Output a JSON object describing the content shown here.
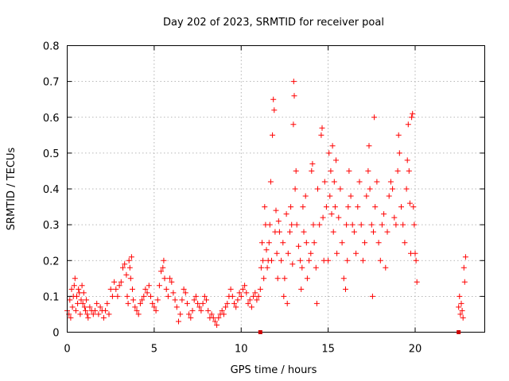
{
  "chart_data": {
    "type": "scatter",
    "title": "Day 202 of 2023, SRMTID for receiver poal",
    "xlabel": "GPS time / hours",
    "ylabel": "SRMTID / TECUs",
    "xlim": [
      0,
      24
    ],
    "ylim": [
      0,
      0.8
    ],
    "x_ticks": [
      0,
      5,
      10,
      15,
      20
    ],
    "x_tick_labels": [
      "0",
      "5",
      "10",
      "15",
      "20"
    ],
    "y_ticks": [
      0,
      0.1,
      0.2,
      0.3,
      0.4,
      0.5,
      0.6,
      0.7,
      0.8
    ],
    "y_tick_labels": [
      "0",
      "0.1",
      "0.2",
      "0.3",
      "0.4",
      "0.5",
      "0.6",
      "0.7",
      "0.8"
    ],
    "grid": true,
    "marker": "+",
    "color": "#ff0000",
    "gap_marker_color": "#cc0000",
    "gap_markers_x": [
      11.1,
      22.5
    ],
    "points": [
      [
        0.0,
        0.06
      ],
      [
        0.1,
        0.05
      ],
      [
        0.15,
        0.09
      ],
      [
        0.2,
        0.04
      ],
      [
        0.25,
        0.12
      ],
      [
        0.3,
        0.07
      ],
      [
        0.35,
        0.1
      ],
      [
        0.4,
        0.13
      ],
      [
        0.45,
        0.15
      ],
      [
        0.5,
        0.06
      ],
      [
        0.55,
        0.1
      ],
      [
        0.6,
        0.08
      ],
      [
        0.65,
        0.12
      ],
      [
        0.7,
        0.11
      ],
      [
        0.75,
        0.05
      ],
      [
        0.8,
        0.09
      ],
      [
        0.85,
        0.13
      ],
      [
        0.9,
        0.08
      ],
      [
        0.95,
        0.11
      ],
      [
        1.0,
        0.07
      ],
      [
        1.05,
        0.06
      ],
      [
        1.1,
        0.09
      ],
      [
        1.15,
        0.05
      ],
      [
        1.2,
        0.04
      ],
      [
        1.3,
        0.07
      ],
      [
        1.4,
        0.06
      ],
      [
        1.5,
        0.05
      ],
      [
        1.6,
        0.06
      ],
      [
        1.7,
        0.08
      ],
      [
        1.8,
        0.05
      ],
      [
        1.9,
        0.07
      ],
      [
        2.0,
        0.06
      ],
      [
        2.1,
        0.04
      ],
      [
        2.2,
        0.06
      ],
      [
        2.3,
        0.08
      ],
      [
        2.4,
        0.05
      ],
      [
        2.5,
        0.12
      ],
      [
        2.6,
        0.1
      ],
      [
        2.7,
        0.14
      ],
      [
        2.8,
        0.12
      ],
      [
        2.9,
        0.1
      ],
      [
        3.0,
        0.13
      ],
      [
        3.1,
        0.14
      ],
      [
        3.2,
        0.18
      ],
      [
        3.3,
        0.19
      ],
      [
        3.4,
        0.16
      ],
      [
        3.45,
        0.1
      ],
      [
        3.5,
        0.08
      ],
      [
        3.55,
        0.2
      ],
      [
        3.6,
        0.18
      ],
      [
        3.65,
        0.15
      ],
      [
        3.7,
        0.21
      ],
      [
        3.75,
        0.12
      ],
      [
        3.8,
        0.09
      ],
      [
        3.9,
        0.07
      ],
      [
        4.0,
        0.06
      ],
      [
        4.1,
        0.05
      ],
      [
        4.2,
        0.08
      ],
      [
        4.3,
        0.09
      ],
      [
        4.4,
        0.1
      ],
      [
        4.5,
        0.12
      ],
      [
        4.6,
        0.11
      ],
      [
        4.7,
        0.13
      ],
      [
        4.8,
        0.1
      ],
      [
        4.9,
        0.08
      ],
      [
        5.0,
        0.07
      ],
      [
        5.1,
        0.06
      ],
      [
        5.2,
        0.09
      ],
      [
        5.3,
        0.13
      ],
      [
        5.4,
        0.17
      ],
      [
        5.5,
        0.18
      ],
      [
        5.55,
        0.2
      ],
      [
        5.6,
        0.15
      ],
      [
        5.7,
        0.12
      ],
      [
        5.8,
        0.1
      ],
      [
        5.9,
        0.15
      ],
      [
        6.0,
        0.14
      ],
      [
        6.1,
        0.11
      ],
      [
        6.2,
        0.09
      ],
      [
        6.3,
        0.07
      ],
      [
        6.4,
        0.03
      ],
      [
        6.5,
        0.05
      ],
      [
        6.6,
        0.09
      ],
      [
        6.7,
        0.12
      ],
      [
        6.8,
        0.11
      ],
      [
        6.9,
        0.08
      ],
      [
        7.0,
        0.05
      ],
      [
        7.1,
        0.04
      ],
      [
        7.2,
        0.06
      ],
      [
        7.3,
        0.09
      ],
      [
        7.4,
        0.1
      ],
      [
        7.5,
        0.08
      ],
      [
        7.6,
        0.07
      ],
      [
        7.7,
        0.06
      ],
      [
        7.8,
        0.08
      ],
      [
        7.9,
        0.1
      ],
      [
        8.0,
        0.09
      ],
      [
        8.1,
        0.06
      ],
      [
        8.2,
        0.04
      ],
      [
        8.3,
        0.05
      ],
      [
        8.4,
        0.04
      ],
      [
        8.5,
        0.03
      ],
      [
        8.6,
        0.02
      ],
      [
        8.7,
        0.04
      ],
      [
        8.8,
        0.05
      ],
      [
        8.9,
        0.06
      ],
      [
        9.0,
        0.05
      ],
      [
        9.1,
        0.07
      ],
      [
        9.2,
        0.08
      ],
      [
        9.3,
        0.1
      ],
      [
        9.4,
        0.12
      ],
      [
        9.5,
        0.1
      ],
      [
        9.6,
        0.08
      ],
      [
        9.7,
        0.07
      ],
      [
        9.8,
        0.09
      ],
      [
        9.9,
        0.11
      ],
      [
        10.0,
        0.1
      ],
      [
        10.1,
        0.12
      ],
      [
        10.2,
        0.13
      ],
      [
        10.3,
        0.11
      ],
      [
        10.4,
        0.08
      ],
      [
        10.5,
        0.09
      ],
      [
        10.6,
        0.07
      ],
      [
        10.7,
        0.1
      ],
      [
        10.8,
        0.11
      ],
      [
        10.9,
        0.09
      ],
      [
        11.0,
        0.1
      ],
      [
        11.1,
        0.12
      ],
      [
        11.15,
        0.18
      ],
      [
        11.2,
        0.25
      ],
      [
        11.25,
        0.2
      ],
      [
        11.3,
        0.15
      ],
      [
        11.35,
        0.35
      ],
      [
        11.4,
        0.3
      ],
      [
        11.45,
        0.23
      ],
      [
        11.5,
        0.18
      ],
      [
        11.55,
        0.2
      ],
      [
        11.6,
        0.25
      ],
      [
        11.65,
        0.3
      ],
      [
        11.7,
        0.42
      ],
      [
        11.75,
        0.2
      ],
      [
        11.8,
        0.55
      ],
      [
        11.85,
        0.65
      ],
      [
        11.9,
        0.62
      ],
      [
        11.95,
        0.28
      ],
      [
        12.0,
        0.34
      ],
      [
        12.05,
        0.22
      ],
      [
        12.1,
        0.15
      ],
      [
        12.15,
        0.31
      ],
      [
        12.2,
        0.28
      ],
      [
        12.3,
        0.2
      ],
      [
        12.4,
        0.25
      ],
      [
        12.45,
        0.1
      ],
      [
        12.5,
        0.15
      ],
      [
        12.6,
        0.33
      ],
      [
        12.65,
        0.08
      ],
      [
        12.7,
        0.22
      ],
      [
        12.8,
        0.28
      ],
      [
        12.85,
        0.35
      ],
      [
        12.9,
        0.3
      ],
      [
        12.95,
        0.19
      ],
      [
        13.0,
        0.58
      ],
      [
        13.02,
        0.7
      ],
      [
        13.05,
        0.66
      ],
      [
        13.1,
        0.4
      ],
      [
        13.15,
        0.45
      ],
      [
        13.2,
        0.3
      ],
      [
        13.3,
        0.24
      ],
      [
        13.4,
        0.2
      ],
      [
        13.45,
        0.12
      ],
      [
        13.5,
        0.18
      ],
      [
        13.55,
        0.35
      ],
      [
        13.6,
        0.28
      ],
      [
        13.7,
        0.38
      ],
      [
        13.75,
        0.25
      ],
      [
        13.8,
        0.15
      ],
      [
        13.9,
        0.2
      ],
      [
        14.0,
        0.22
      ],
      [
        14.05,
        0.45
      ],
      [
        14.1,
        0.47
      ],
      [
        14.15,
        0.3
      ],
      [
        14.2,
        0.25
      ],
      [
        14.3,
        0.18
      ],
      [
        14.35,
        0.08
      ],
      [
        14.4,
        0.4
      ],
      [
        14.5,
        0.3
      ],
      [
        14.6,
        0.55
      ],
      [
        14.65,
        0.57
      ],
      [
        14.7,
        0.32
      ],
      [
        14.75,
        0.2
      ],
      [
        14.8,
        0.42
      ],
      [
        14.9,
        0.35
      ],
      [
        15.0,
        0.2
      ],
      [
        15.05,
        0.5
      ],
      [
        15.1,
        0.38
      ],
      [
        15.15,
        0.45
      ],
      [
        15.2,
        0.33
      ],
      [
        15.25,
        0.52
      ],
      [
        15.3,
        0.28
      ],
      [
        15.35,
        0.42
      ],
      [
        15.4,
        0.35
      ],
      [
        15.45,
        0.48
      ],
      [
        15.5,
        0.22
      ],
      [
        15.6,
        0.32
      ],
      [
        15.7,
        0.4
      ],
      [
        15.8,
        0.25
      ],
      [
        15.9,
        0.15
      ],
      [
        16.0,
        0.12
      ],
      [
        16.05,
        0.3
      ],
      [
        16.1,
        0.2
      ],
      [
        16.15,
        0.35
      ],
      [
        16.2,
        0.45
      ],
      [
        16.3,
        0.38
      ],
      [
        16.4,
        0.3
      ],
      [
        16.5,
        0.28
      ],
      [
        16.6,
        0.22
      ],
      [
        16.7,
        0.35
      ],
      [
        16.8,
        0.42
      ],
      [
        16.9,
        0.3
      ],
      [
        17.0,
        0.2
      ],
      [
        17.1,
        0.25
      ],
      [
        17.2,
        0.38
      ],
      [
        17.3,
        0.45
      ],
      [
        17.35,
        0.52
      ],
      [
        17.4,
        0.4
      ],
      [
        17.5,
        0.3
      ],
      [
        17.55,
        0.1
      ],
      [
        17.6,
        0.28
      ],
      [
        17.65,
        0.6
      ],
      [
        17.7,
        0.35
      ],
      [
        17.8,
        0.42
      ],
      [
        17.9,
        0.25
      ],
      [
        18.0,
        0.2
      ],
      [
        18.1,
        0.3
      ],
      [
        18.2,
        0.33
      ],
      [
        18.3,
        0.18
      ],
      [
        18.4,
        0.28
      ],
      [
        18.5,
        0.38
      ],
      [
        18.6,
        0.42
      ],
      [
        18.7,
        0.4
      ],
      [
        18.8,
        0.32
      ],
      [
        18.9,
        0.3
      ],
      [
        19.0,
        0.45
      ],
      [
        19.05,
        0.55
      ],
      [
        19.1,
        0.5
      ],
      [
        19.2,
        0.35
      ],
      [
        19.3,
        0.3
      ],
      [
        19.4,
        0.25
      ],
      [
        19.5,
        0.4
      ],
      [
        19.55,
        0.48
      ],
      [
        19.6,
        0.58
      ],
      [
        19.65,
        0.45
      ],
      [
        19.7,
        0.36
      ],
      [
        19.75,
        0.22
      ],
      [
        19.8,
        0.6
      ],
      [
        19.85,
        0.61
      ],
      [
        19.9,
        0.35
      ],
      [
        19.95,
        0.3
      ],
      [
        20.0,
        0.22
      ],
      [
        20.05,
        0.2
      ],
      [
        20.1,
        0.14
      ],
      [
        22.5,
        0.07
      ],
      [
        22.55,
        0.1
      ],
      [
        22.6,
        0.05
      ],
      [
        22.65,
        0.08
      ],
      [
        22.7,
        0.06
      ],
      [
        22.75,
        0.04
      ],
      [
        22.8,
        0.18
      ],
      [
        22.85,
        0.14
      ],
      [
        22.9,
        0.21
      ]
    ]
  }
}
